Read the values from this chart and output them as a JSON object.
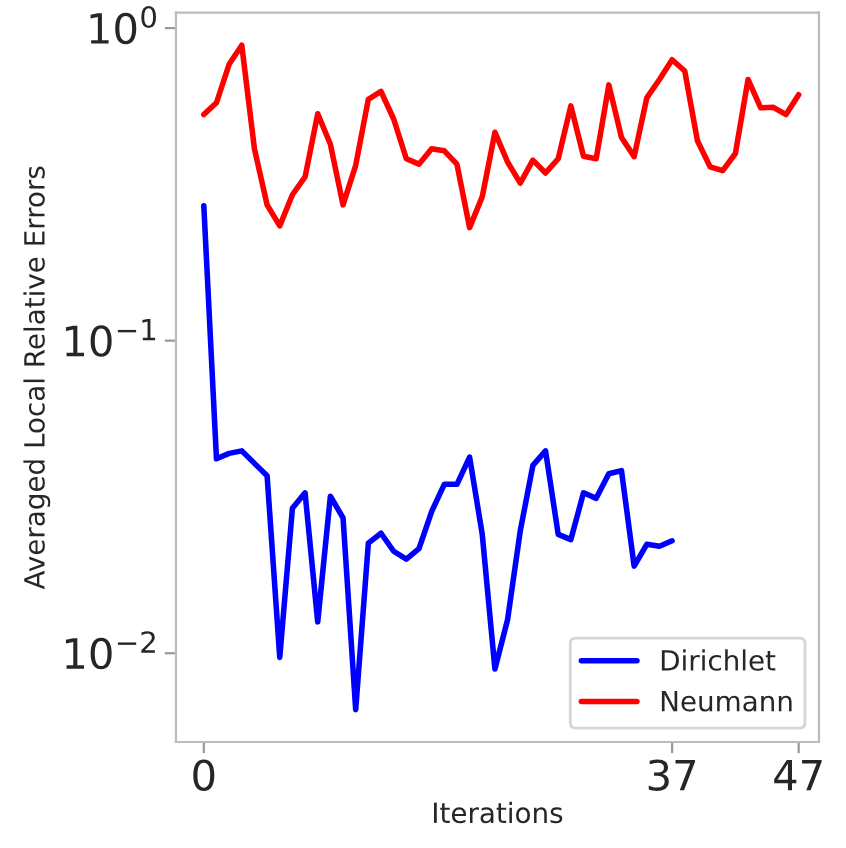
{
  "chart_data": {
    "type": "line",
    "xlabel": "Iterations",
    "ylabel": "Averaged Local Relative Errors",
    "log": "y",
    "grid": false,
    "legend": "bottom right",
    "xlim": [
      -2.2,
      48.6
    ],
    "xticks": [
      0,
      37,
      47
    ],
    "ylim": [
      0.0052,
      1.12
    ],
    "yticks": [
      {
        "value": 1,
        "label": "10$^{0}$"
      },
      {
        "value": 0.1,
        "label": "10$^{−1}$"
      },
      {
        "value": 0.01,
        "label": "10$^{−2}$"
      }
    ],
    "series": [
      {
        "name": "Dirichlet",
        "color": "#0000ff",
        "x": [
          0,
          1,
          2,
          3,
          4,
          5,
          6,
          7,
          8,
          9,
          10,
          11,
          12,
          13,
          14,
          15,
          16,
          17,
          18,
          19,
          20,
          21,
          22,
          23,
          24,
          25,
          26,
          27,
          28,
          29,
          30,
          31,
          32,
          33,
          34,
          35,
          36,
          37
        ],
        "values": [
          0.27,
          0.0419,
          0.0436,
          0.0444,
          0.0405,
          0.037,
          0.0097,
          0.0291,
          0.0326,
          0.0126,
          0.0318,
          0.0271,
          0.0066,
          0.0225,
          0.0242,
          0.0212,
          0.02,
          0.0216,
          0.0284,
          0.0347,
          0.0347,
          0.0424,
          0.024,
          0.0089,
          0.0128,
          0.0246,
          0.0399,
          0.0444,
          0.024,
          0.0231,
          0.0326,
          0.0313,
          0.0375,
          0.0384,
          0.019,
          0.0223,
          0.022,
          0.0229
        ]
      },
      {
        "name": "Neumann",
        "color": "#ff0000",
        "x": [
          0,
          1,
          2,
          3,
          4,
          5,
          6,
          7,
          8,
          9,
          10,
          11,
          12,
          13,
          14,
          15,
          16,
          17,
          18,
          19,
          20,
          21,
          22,
          23,
          24,
          25,
          26,
          27,
          28,
          29,
          30,
          31,
          32,
          33,
          34,
          35,
          36,
          37,
          38,
          39,
          40,
          41,
          42,
          43,
          44,
          45,
          46,
          47
        ],
        "values": [
          0.529,
          0.577,
          0.766,
          0.881,
          0.411,
          0.272,
          0.233,
          0.293,
          0.334,
          0.532,
          0.425,
          0.272,
          0.364,
          0.592,
          0.627,
          0.512,
          0.382,
          0.367,
          0.411,
          0.405,
          0.367,
          0.23,
          0.289,
          0.464,
          0.373,
          0.319,
          0.378,
          0.344,
          0.382,
          0.564,
          0.389,
          0.382,
          0.658,
          0.447,
          0.388,
          0.598,
          0.685,
          0.792,
          0.729,
          0.436,
          0.36,
          0.35,
          0.397,
          0.685,
          0.556,
          0.558,
          0.529,
          0.612
        ]
      }
    ]
  }
}
